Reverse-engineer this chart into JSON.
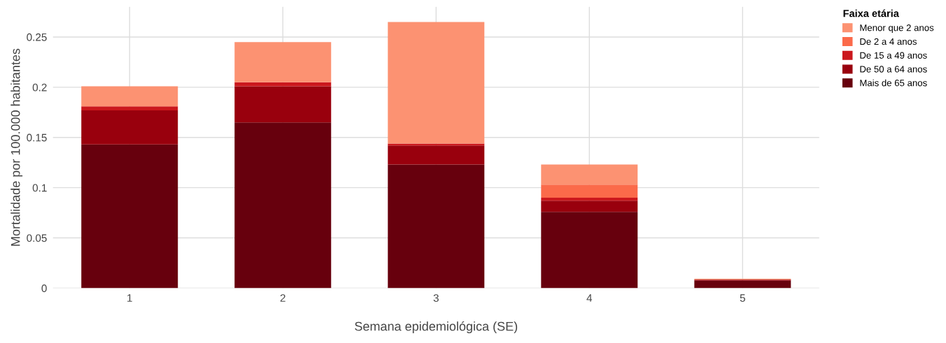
{
  "chart_data": {
    "type": "bar",
    "stacked": true,
    "xlabel": "Semana epidemiológica (SE)",
    "ylabel": "Mortalidade por 100.000 habitantes",
    "legend_title": "Faixa etária",
    "legend": "top right",
    "grid": true,
    "categories": [
      "1",
      "2",
      "3",
      "4",
      "5"
    ],
    "ylim": [
      0,
      0.28
    ],
    "yticks": [
      0,
      0.05,
      0.1,
      0.15,
      0.2,
      0.25
    ],
    "series": [
      {
        "name": "Mais de 65 anos",
        "color": "#67000d",
        "values": [
          0.143,
          0.165,
          0.123,
          0.076,
          0.0075
        ]
      },
      {
        "name": "De 50 a 64 anos",
        "color": "#99000d",
        "values": [
          0.034,
          0.036,
          0.019,
          0.011,
          0.001
        ]
      },
      {
        "name": "De 15 a 49 anos",
        "color": "#cb181d",
        "values": [
          0.004,
          0.004,
          0.002,
          0.003,
          0
        ]
      },
      {
        "name": "De 2 a 4 anos",
        "color": "#fb6a4a",
        "values": [
          0,
          0,
          0,
          0.013,
          0
        ]
      },
      {
        "name": "Menor que 2 anos",
        "color": "#fc9272",
        "values": [
          0.02,
          0.04,
          0.121,
          0.02,
          0.0008
        ]
      }
    ]
  }
}
